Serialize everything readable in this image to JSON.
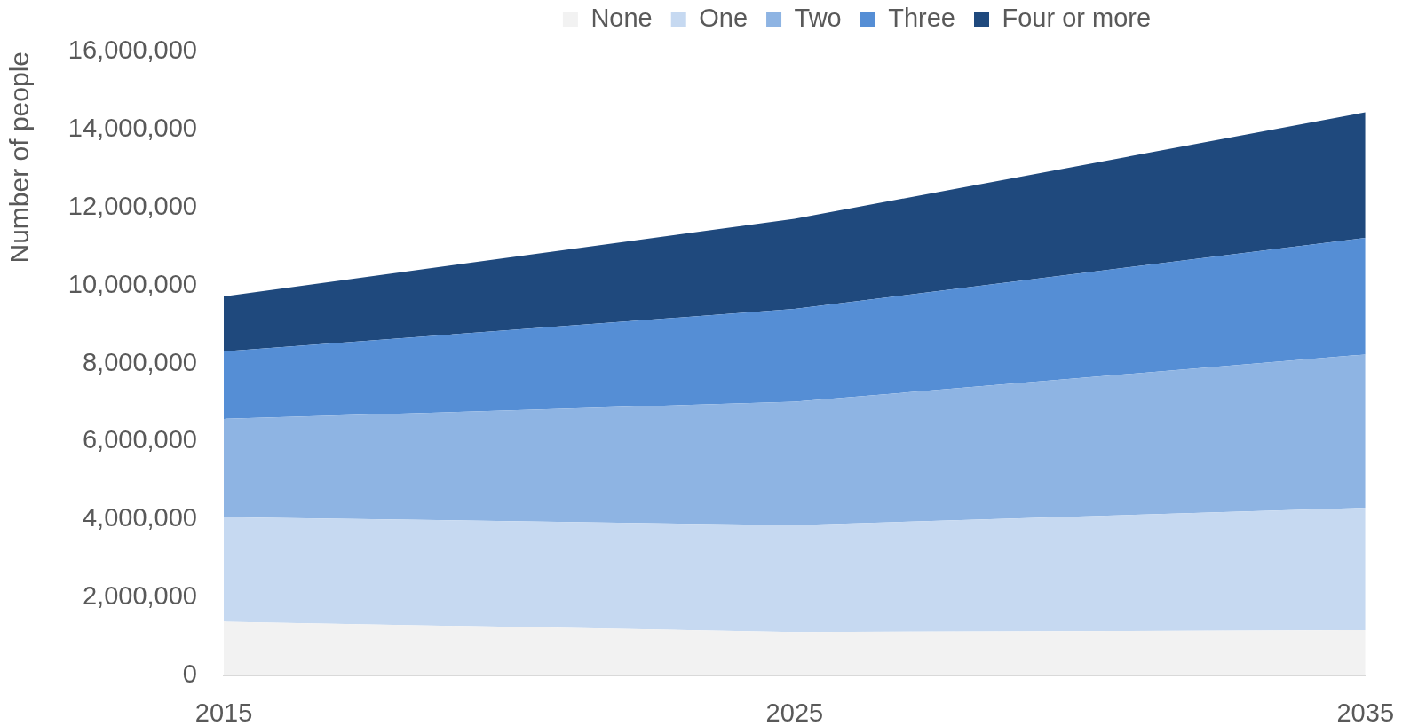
{
  "chart_data": {
    "type": "area",
    "stacked": true,
    "ylabel": "Number of people",
    "legend": "top",
    "categories": [
      "2015",
      "2025",
      "2035"
    ],
    "series": [
      {
        "name": "None",
        "color": "#f2f2f2",
        "values": [
          1380000,
          1110000,
          1160000
        ]
      },
      {
        "name": "One",
        "color": "#c6d9f1",
        "values": [
          2680000,
          2740000,
          3140000
        ]
      },
      {
        "name": "Two",
        "color": "#8eb4e3",
        "values": [
          2520000,
          3170000,
          3930000
        ]
      },
      {
        "name": "Three",
        "color": "#558ed5",
        "values": [
          1730000,
          2380000,
          2990000
        ]
      },
      {
        "name": "Four or more",
        "color": "#1f497d",
        "values": [
          1410000,
          2310000,
          3220000
        ]
      }
    ],
    "ylim": [
      0,
      16000000
    ],
    "yticks": [
      0,
      {
        "value": 2000000,
        "label": "2,000,000"
      },
      {
        "value": 4000000,
        "label": "4,000,000"
      },
      {
        "value": 6000000,
        "label": "6,000,000"
      },
      {
        "value": 8000000,
        "label": "8,000,000"
      },
      {
        "value": 10000000,
        "label": "10,000,000"
      },
      {
        "value": 12000000,
        "label": "12,000,000"
      },
      {
        "value": 14000000,
        "label": "14,000,000"
      },
      {
        "value": 16000000,
        "label": "16,000,000"
      }
    ]
  }
}
